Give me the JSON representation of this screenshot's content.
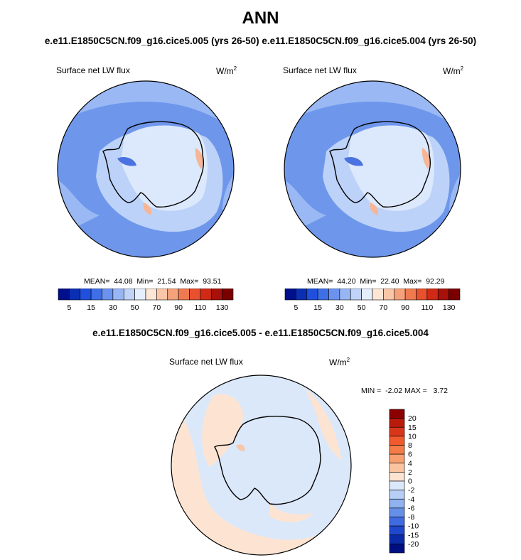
{
  "title": "ANN",
  "subtitle": "e.e11.E1850C5CN.f09_g16.cice5.005 (yrs 26-50)  e.e11.E1850C5CN.f09_g16.cice5.004 (yrs 26-50)",
  "diff_title": "e.e11.E1850C5CN.f09_g16.cice5.005 - e.e11.E1850C5CN.f09_g16.cice5.004",
  "panels": [
    {
      "label": "Surface net LW flux",
      "units": "W/m",
      "units_sup": "2",
      "stats": "MEAN=  44.08  Min=  21.54  Max=  93.51"
    },
    {
      "label": "Surface net LW flux",
      "units": "W/m",
      "units_sup": "2",
      "stats": "MEAN=  44.20  Min=  22.40  Max=  92.29"
    }
  ],
  "diff_panel": {
    "label": "Surface net LW flux",
    "units": "W/m",
    "units_sup": "2",
    "stats": "MIN =  -2.02 MAX =   3.72"
  },
  "colorbar_abs": {
    "labels": [
      "5",
      "15",
      "30",
      "50",
      "70",
      "90",
      "110",
      "130"
    ],
    "colors": [
      "#000f8c",
      "#0a2fb4",
      "#1f4fdc",
      "#3f6fe6",
      "#6b93ee",
      "#98b6f4",
      "#c0d4f8",
      "#e4eefc",
      "#fde6d6",
      "#f9c6a8",
      "#f5a27a",
      "#f07a50",
      "#e8502e",
      "#d02a16",
      "#a8100a",
      "#7a0000"
    ]
  },
  "colorbar_diff": {
    "labels": [
      "20",
      "15",
      "10",
      "8",
      "6",
      "4",
      "2",
      "0",
      "-2",
      "-4",
      "-6",
      "-8",
      "-10",
      "-15",
      "-20"
    ],
    "colors": [
      "#8c0000",
      "#b81a0c",
      "#d8361a",
      "#f05a2c",
      "#f57c48",
      "#f8a070",
      "#fbc4a0",
      "#fde4d0",
      "#dbe8fa",
      "#b8cff5",
      "#90b2ef",
      "#6690e8",
      "#3f6ae0",
      "#1f48cc",
      "#0a2aa8",
      "#000f80"
    ]
  },
  "map_colors": {
    "ocean_abs": "#6e97ec",
    "ocean_light_abs": "#9ab8f4",
    "ice_abs": "#bcd2f8",
    "ice_pale_abs": "#dce8fc",
    "warm_abs": "#f7b596",
    "diff_neg": "#dbe8fa",
    "diff_pos": "#fde4d2"
  }
}
